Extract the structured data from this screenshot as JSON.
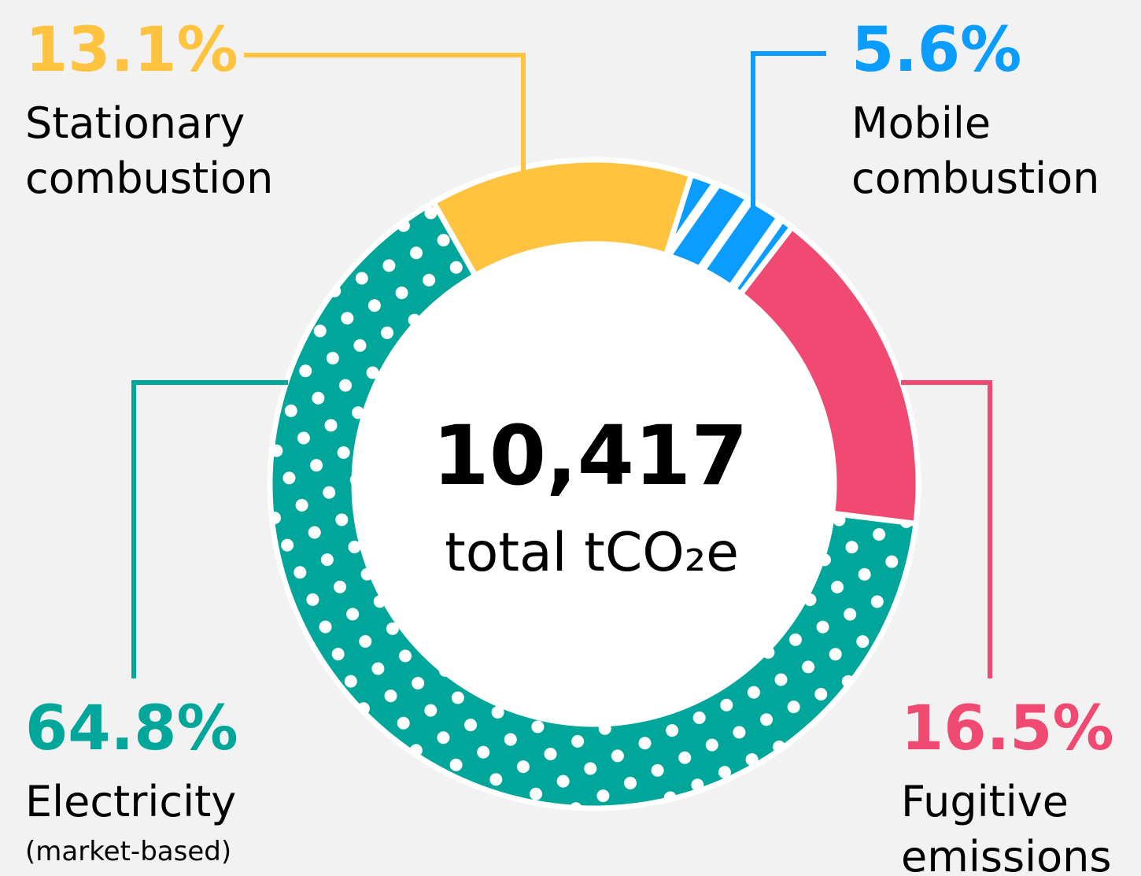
{
  "chart_data": {
    "type": "donut",
    "categories": [
      "Stationary combustion",
      "Mobile combustion",
      "Fugitive emissions",
      "Electricity"
    ],
    "values": [
      13.1,
      5.6,
      16.5,
      64.8
    ],
    "value_labels": [
      "13.1%",
      "5.6%",
      "16.5%",
      "64.8%"
    ],
    "colors": [
      "#ffc340",
      "#0a9cff",
      "#f04a72",
      "#00a699"
    ],
    "patterns": [
      "solid",
      "stripes",
      "solid",
      "dots"
    ],
    "annotation": "(market-based)",
    "total": {
      "value": 10417,
      "label": "10,417"
    },
    "center_label": "total tCO₂e"
  }
}
